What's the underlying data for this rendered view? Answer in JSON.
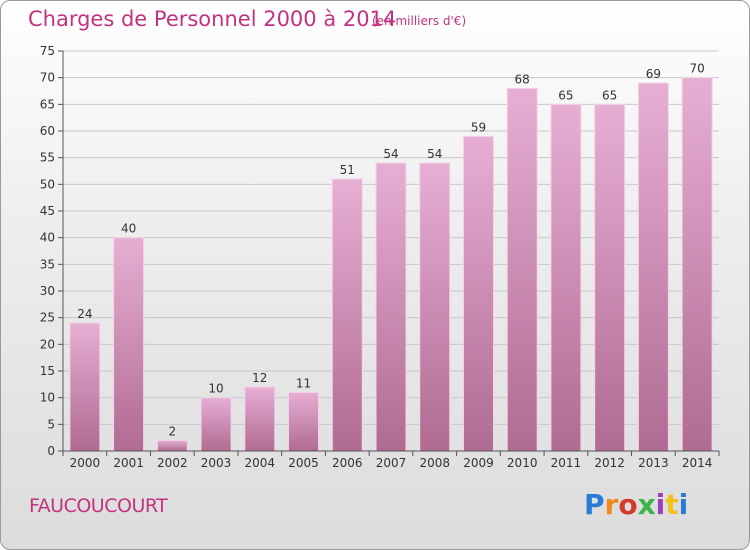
{
  "header": {
    "title": "Charges de Personnel 2000 à 2014",
    "unit": "(en milliers d'€)"
  },
  "footer": {
    "commune": "FAUCOUCOURT",
    "logo_text": "Proxiti",
    "logo_colors": [
      "#2a7bd8",
      "#f08a1c",
      "#d23a2a",
      "#3db44a",
      "#9c3dbd",
      "#f0c21c",
      "#2a7bd8"
    ]
  },
  "colors": {
    "bar_top": "#e7aed4",
    "bar_bottom": "#b06b92",
    "title": "#c2337f",
    "grid": "#c8c8c8"
  },
  "chart_data": {
    "type": "bar",
    "categories": [
      "2000",
      "2001",
      "2002",
      "2003",
      "2004",
      "2005",
      "2006",
      "2007",
      "2008",
      "2009",
      "2010",
      "2011",
      "2012",
      "2013",
      "2014"
    ],
    "values": [
      24,
      40,
      2,
      10,
      12,
      11,
      51,
      54,
      54,
      59,
      68,
      65,
      65,
      69,
      70
    ],
    "ylim": [
      0,
      75
    ],
    "yticks": [
      0,
      5,
      10,
      15,
      20,
      25,
      30,
      35,
      40,
      45,
      50,
      55,
      60,
      65,
      70,
      75
    ],
    "grid": true,
    "data_labels": true
  }
}
